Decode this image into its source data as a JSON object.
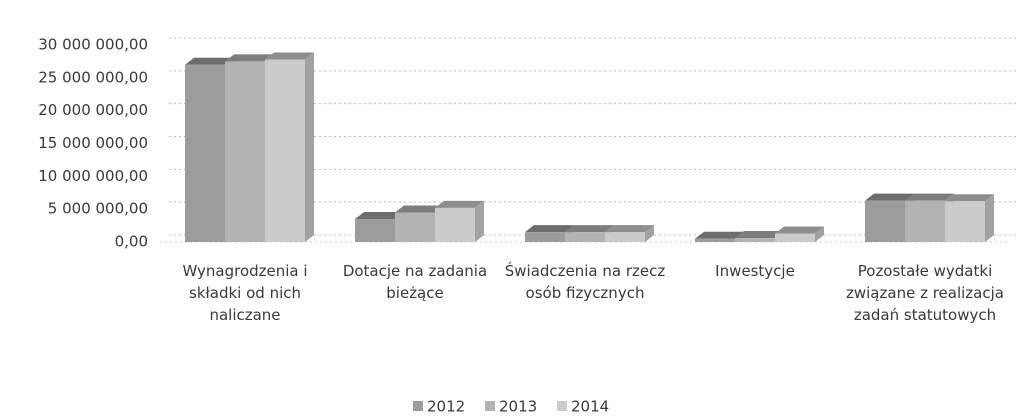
{
  "chart_data": {
    "type": "bar3d",
    "categories": [
      "Wynagrodzenia i składki od nich naliczane",
      "Dotacje na zadania bieżące",
      "Świadczenia na rzecz osób fizycznych",
      "Inwestycje",
      "Pozostałe wydatki związane z realizacja zadań statutowych"
    ],
    "series": [
      {
        "name": "2012",
        "color": "#9c9c9c",
        "values": [
          27000000,
          3500000,
          1500000,
          500000,
          6300000
        ]
      },
      {
        "name": "2013",
        "color": "#b3b3b3",
        "values": [
          27500000,
          4500000,
          1500000,
          600000,
          6300000
        ]
      },
      {
        "name": "2014",
        "color": "#cbcbcb",
        "values": [
          27800000,
          5200000,
          1500000,
          1300000,
          6200000
        ]
      }
    ],
    "ylim": [
      0,
      30000000
    ],
    "yticks": [
      {
        "value": 0,
        "label": "0,00"
      },
      {
        "value": 5000000,
        "label": "5 000 000,00"
      },
      {
        "value": 10000000,
        "label": "10 000 000,00"
      },
      {
        "value": 15000000,
        "label": "15 000 000,00"
      },
      {
        "value": 20000000,
        "label": "20 000 000,00"
      },
      {
        "value": 25000000,
        "label": "25 000 000,00"
      },
      {
        "value": 30000000,
        "label": "30 000 000,00"
      }
    ],
    "grid": true,
    "legend": "bottom"
  }
}
